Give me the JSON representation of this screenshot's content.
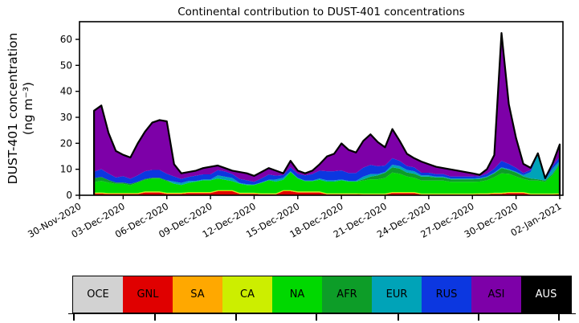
{
  "chart": {
    "title": "Continental contribution to DUST-401 concentrations",
    "ylabel_line1": "DUST-401 concentration",
    "ylabel_line2": "(ng m⁻³)"
  },
  "chart_data": {
    "type": "area",
    "stacked": true,
    "title": "Continental contribution to DUST-401 concentrations",
    "xlabel": "",
    "ylabel": "DUST-401 concentration (ng m⁻³)",
    "grid": false,
    "ylim": [
      0,
      66.8
    ],
    "yticks": [
      0,
      10,
      20,
      30,
      40,
      50,
      60
    ],
    "x_axis": {
      "reference_date": "30-Nov-2020",
      "tick_day_offsets": [
        0,
        3,
        6,
        9,
        12,
        15,
        18,
        21,
        24,
        27,
        30,
        33
      ],
      "tick_labels": [
        "30-Nov-2020",
        "03-Dec-2020",
        "06-Dec-2020",
        "09-Dec-2020",
        "12-Dec-2020",
        "15-Dec-2020",
        "18-Dec-2020",
        "21-Dec-2020",
        "24-Dec-2020",
        "27-Dec-2020",
        "30-Dec-2020",
        "02-Jan-2021"
      ],
      "data_start_offset_days": 1.0,
      "data_step_days": 0.5,
      "n_points": 65
    },
    "outline_color": "#000000",
    "series": [
      {
        "name": "OCE",
        "color": "#d2d2d2",
        "constant": 0.05,
        "values": null
      },
      {
        "name": "GNL",
        "color": "#e00000",
        "constant": null,
        "values": [
          0.6,
          0.6,
          0.4,
          0.4,
          0.4,
          0.4,
          0.4,
          1.0,
          1.0,
          1.0,
          0.5,
          0.5,
          0.5,
          0.8,
          0.8,
          0.8,
          0.8,
          1.5,
          1.5,
          1.5,
          0.5,
          0.5,
          0.5,
          0.3,
          0.3,
          0.3,
          1.5,
          1.5,
          1.0,
          1.0,
          1.0,
          1.0,
          0.3,
          0.3,
          0.3,
          0.3,
          0.3,
          0.2,
          0.2,
          0.2,
          0.2,
          0.8,
          0.8,
          0.8,
          0.8,
          0.2,
          0.2,
          0.2,
          0.2,
          0.2,
          0.2,
          0.2,
          0.2,
          0.3,
          0.3,
          0.5,
          0.5,
          0.8,
          0.8,
          0.8,
          0.2,
          0.2,
          0.2,
          0.2,
          0.3
        ]
      },
      {
        "name": "SA",
        "color": "#ffa800",
        "constant": 0.15,
        "values": null
      },
      {
        "name": "CA",
        "color": "#ccee00",
        "constant": 0.25,
        "values": null
      },
      {
        "name": "NA",
        "color": "#00d800",
        "constant": null,
        "values": [
          4.0,
          4.5,
          4.0,
          3.5,
          3.5,
          3.0,
          4.0,
          4.5,
          5.0,
          5.0,
          4.5,
          3.5,
          3.0,
          3.5,
          4.0,
          4.5,
          4.5,
          4.5,
          4.0,
          3.5,
          3.5,
          3.0,
          3.0,
          4.0,
          5.0,
          4.5,
          4.0,
          7.0,
          5.0,
          4.0,
          4.0,
          4.5,
          4.5,
          4.5,
          5.0,
          4.5,
          4.5,
          5.0,
          5.5,
          5.5,
          6.0,
          7.5,
          7.0,
          6.0,
          5.5,
          5.0,
          5.0,
          5.0,
          5.0,
          4.5,
          4.5,
          4.5,
          4.5,
          4.5,
          5.0,
          6.0,
          7.5,
          7.0,
          6.0,
          5.0,
          5.0,
          5.0,
          4.5,
          7.0,
          11.0
        ]
      },
      {
        "name": "AFR",
        "color": "#0d9d28",
        "constant": null,
        "values": [
          1.5,
          1.5,
          1.0,
          0.5,
          0.5,
          0.5,
          0.3,
          0.3,
          0.3,
          0.3,
          0.3,
          0,
          0,
          0,
          0,
          0,
          0,
          0,
          0,
          0,
          0,
          0,
          0,
          0,
          0,
          0,
          0,
          0,
          0,
          0,
          0,
          0,
          0,
          0,
          0,
          0,
          0,
          0.5,
          1.0,
          1.5,
          2.0,
          2.0,
          2.0,
          1.5,
          1.5,
          1.5,
          1.5,
          1.2,
          1.2,
          1.0,
          1.0,
          1.0,
          1.0,
          1.0,
          1.2,
          1.5,
          2.0,
          1.5,
          1.5,
          1.0,
          0.8,
          0.5,
          0.5,
          0.5,
          0.5
        ]
      },
      {
        "name": "EUR",
        "color": "#00a3b8",
        "constant": null,
        "values": [
          0,
          0,
          0,
          0,
          0,
          0,
          0,
          0,
          0,
          0,
          0,
          0.8,
          0.8,
          0.8,
          0.3,
          0.3,
          0.3,
          1.2,
          1.2,
          1.2,
          0.3,
          0.3,
          0.2,
          0.2,
          0.2,
          0.8,
          0.8,
          0.3,
          0.3,
          0.2,
          0.2,
          0.5,
          0.5,
          0.5,
          0.3,
          0.3,
          0.3,
          1.0,
          1.0,
          0.5,
          0.3,
          1.0,
          1.0,
          1.0,
          1.0,
          0.5,
          0.5,
          0.3,
          0.3,
          0.3,
          0.3,
          0.3,
          0.3,
          0.3,
          0.3,
          0.3,
          0.3,
          0.3,
          0.3,
          0.5,
          2.5,
          9.5,
          0.3,
          2.0,
          1.0
        ]
      },
      {
        "name": "RUS",
        "color": "#0c37e0",
        "constant": null,
        "values": [
          2.5,
          3.0,
          2.5,
          2.0,
          2.5,
          2.0,
          2.5,
          3.0,
          3.0,
          3.0,
          2.5,
          2.0,
          1.5,
          1.5,
          2.0,
          2.0,
          2.0,
          2.0,
          2.0,
          1.5,
          1.5,
          1.5,
          1.0,
          1.5,
          2.0,
          1.5,
          1.0,
          1.5,
          1.5,
          2.0,
          2.5,
          3.0,
          3.5,
          3.5,
          3.5,
          3.0,
          3.0,
          3.5,
          3.5,
          3.0,
          2.5,
          2.5,
          2.0,
          1.5,
          1.5,
          1.0,
          1.0,
          1.0,
          1.0,
          0.8,
          0.8,
          0.8,
          0.8,
          0.8,
          1.0,
          1.5,
          2.5,
          2.0,
          1.5,
          0.8,
          0.8,
          0.2,
          0.3,
          1.0,
          1.5
        ]
      },
      {
        "name": "ASI",
        "color": "#7d00a8",
        "constant": null,
        "values": [
          23.5,
          24.5,
          15.6,
          10.2,
          8.2,
          8.2,
          12.3,
          15.2,
          18.2,
          19.2,
          20.2,
          4.7,
          2.2,
          1.9,
          1.9,
          2.4,
          2.9,
          1.8,
          1.3,
          1.3,
          2.7,
          2.7,
          2.3,
          2.5,
          2.5,
          1.9,
          0.7,
          2.5,
          1.2,
          0.8,
          1.3,
          2.5,
          5.7,
          6.7,
          10.4,
          8.9,
          7.9,
          10.3,
          11.8,
          9.3,
          7.0,
          11.2,
          7.7,
          4.7,
          3.5,
          4.3,
          3.3,
          2.8,
          2.3,
          2.7,
          2.2,
          1.7,
          1.2,
          0.5,
          1.8,
          5.2,
          49.2,
          23.0,
          11.5,
          3.5,
          0.8,
          0.3,
          0.3,
          0.9,
          4.8
        ]
      },
      {
        "name": "AUS",
        "color": "#000000",
        "constant": 0.0,
        "values": null
      }
    ],
    "legend_position": "bottom"
  },
  "legend": {
    "items": [
      {
        "label": "OCE",
        "color": "#d2d2d2",
        "text_color": "#000000"
      },
      {
        "label": "GNL",
        "color": "#e00000",
        "text_color": "#000000"
      },
      {
        "label": "SA",
        "color": "#ffa800",
        "text_color": "#000000"
      },
      {
        "label": "CA",
        "color": "#ccee00",
        "text_color": "#000000"
      },
      {
        "label": "NA",
        "color": "#00d800",
        "text_color": "#000000"
      },
      {
        "label": "AFR",
        "color": "#0d9d28",
        "text_color": "#000000"
      },
      {
        "label": "EUR",
        "color": "#00a3b8",
        "text_color": "#000000"
      },
      {
        "label": "RUS",
        "color": "#0c37e0",
        "text_color": "#000000"
      },
      {
        "label": "ASI",
        "color": "#7d00a8",
        "text_color": "#000000"
      },
      {
        "label": "AUS",
        "color": "#000000",
        "text_color": "#ffffff"
      }
    ]
  }
}
